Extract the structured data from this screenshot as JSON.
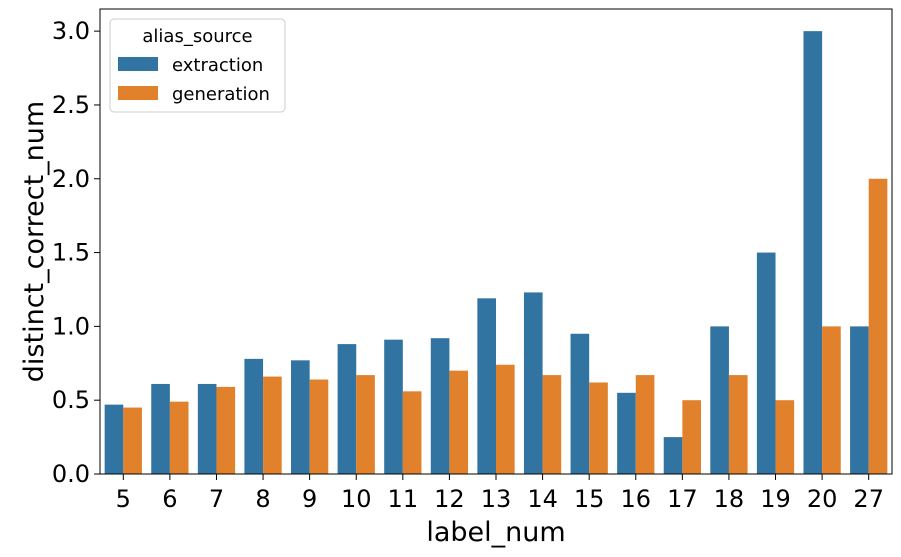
{
  "chart_data": {
    "type": "bar",
    "xlabel": "label_num",
    "ylabel": "distinct_correct_num",
    "categories": [
      "5",
      "6",
      "7",
      "8",
      "9",
      "10",
      "11",
      "12",
      "13",
      "14",
      "15",
      "16",
      "17",
      "18",
      "19",
      "20",
      "27"
    ],
    "ylim": [
      0,
      3.15
    ],
    "yticks": [
      "0.0",
      "0.5",
      "1.0",
      "1.5",
      "2.0",
      "2.5",
      "3.0"
    ],
    "legend": {
      "title": "alias_source",
      "placement": "top-left"
    },
    "grid": false,
    "series": [
      {
        "name": "extraction",
        "color": "#3274a1",
        "values": [
          0.47,
          0.61,
          0.61,
          0.78,
          0.77,
          0.88,
          0.91,
          0.92,
          1.19,
          1.23,
          0.95,
          0.55,
          0.25,
          1.0,
          1.5,
          3.0,
          1.0
        ]
      },
      {
        "name": "generation",
        "color": "#e1812c",
        "values": [
          0.45,
          0.49,
          0.59,
          0.66,
          0.64,
          0.67,
          0.56,
          0.7,
          0.74,
          0.67,
          0.62,
          0.67,
          0.5,
          0.67,
          0.5,
          1.0,
          2.0
        ]
      }
    ]
  }
}
